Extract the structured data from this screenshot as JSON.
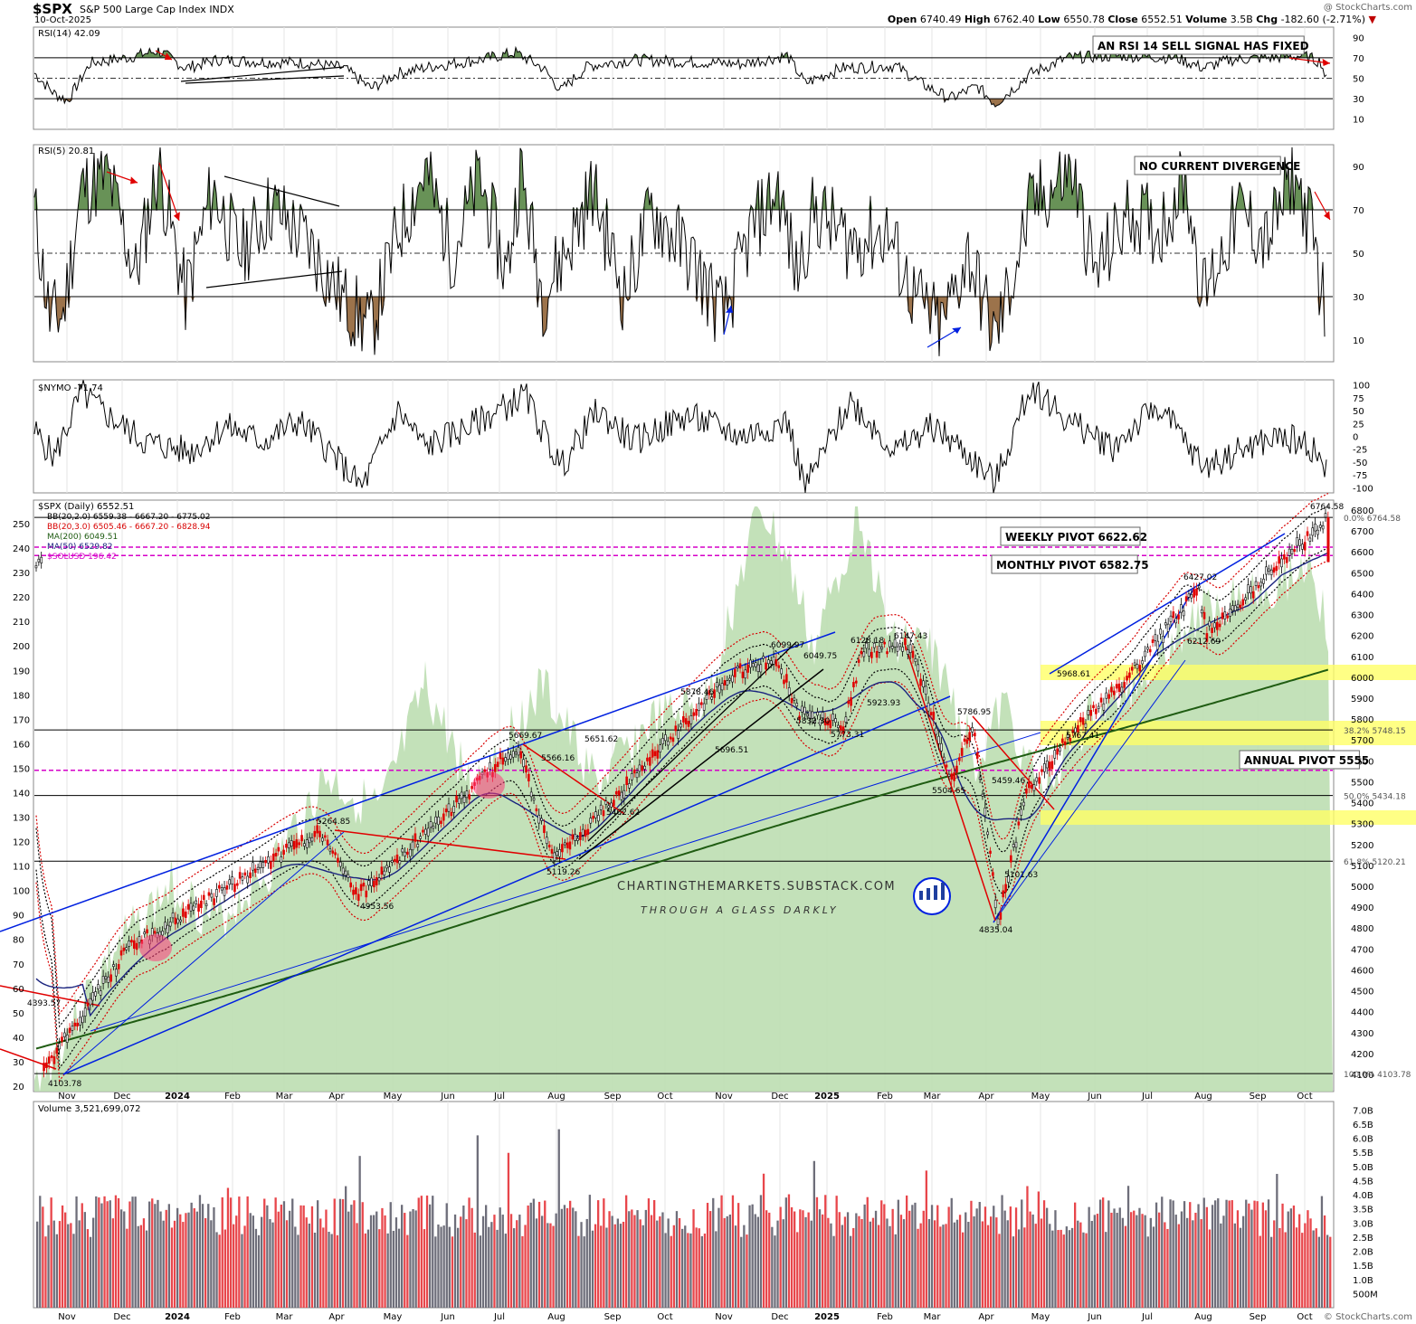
{
  "header": {
    "symbol": "$SPX",
    "name": "S&P 500 Large Cap Index",
    "exchange": "INDX",
    "date": "10-Oct-2025",
    "open_label": "Open",
    "open": "6740.49",
    "high_label": "High",
    "high": "6762.40",
    "low_label": "Low",
    "low": "6550.78",
    "close_label": "Close",
    "close": "6552.51",
    "volume_label": "Volume",
    "volume": "3.5B",
    "chg_label": "Chg",
    "chg": "-182.60 (-2.71%)",
    "watermark": "@ StockCharts.com",
    "watermark_bottom": "© StockCharts.com"
  },
  "colors": {
    "up": "#000000",
    "down": "#e00000",
    "rsi_fill_high": "#4e7f3a",
    "rsi_fill_low": "#8b5a2b",
    "sol_area": "#b9dcad",
    "ma200": "#1f5c12",
    "ma50": "#1a237e",
    "pivot": "#d600c8",
    "bb20_2": "#000000",
    "bb20_3": "#d80000",
    "trendline_blue": "#0020e0",
    "trendline_red": "#e00000",
    "fib_band": "#ffff66",
    "vol_up": "#6e6e7a",
    "vol_down": "#e8464b"
  },
  "panels": {
    "rsi14": {
      "legend": "RSI(14) 42.09",
      "ticks": [
        "90",
        "70",
        "50",
        "30",
        "10"
      ],
      "annotation": "AN RSI 14 SELL SIGNAL HAS FIXED"
    },
    "rsi5": {
      "legend": "RSI(5) 20.81",
      "ticks": [
        "90",
        "70",
        "50",
        "30",
        "10"
      ],
      "annotation": "NO CURRENT DIVERGENCE"
    },
    "nymo": {
      "legend": "$NYMO -71.74",
      "ticks": [
        "100",
        "75",
        "50",
        "25",
        "0",
        "-25",
        "-50",
        "-75",
        "-100"
      ]
    },
    "price": {
      "legend": "$SPX (Daily) 6552.51",
      "overlays": [
        "BB(20,2.0) 6559.38 - 6667.20 - 6775.02",
        "BB(20,3.0) 6505.46 - 6667.20 - 6828.94",
        "MA(200) 6049.51",
        "MA(50) 6529.82",
        "$SOLUSD 196.42"
      ],
      "right_ticks": [
        "6800",
        "6700",
        "6600",
        "6500",
        "6400",
        "6300",
        "6200",
        "6100",
        "6000",
        "5900",
        "5800",
        "5700",
        "5600",
        "5500",
        "5400",
        "5300",
        "5200",
        "5100",
        "5000",
        "4900",
        "4800",
        "4700",
        "4600",
        "4500",
        "4400",
        "4300",
        "4200",
        "4100"
      ],
      "left_ticks": [
        "250",
        "240",
        "230",
        "220",
        "210",
        "200",
        "190",
        "180",
        "170",
        "160",
        "150",
        "140",
        "130",
        "120",
        "110",
        "100",
        "90",
        "80",
        "70",
        "60",
        "50",
        "40",
        "30",
        "20"
      ],
      "annotations": {
        "weekly_pivot": "WEEKLY PIVOT 6622.62",
        "monthly_pivot": "MONTHLY PIVOT 6582.75",
        "annual_pivot": "ANNUAL PIVOT 5555"
      },
      "fib_labels": [
        "0.0% 6764.58",
        "38.2% 5748.15",
        "50.0% 5434.18",
        "61.8% 5120.21",
        "100.0% 4103.78"
      ],
      "point_labels": [
        "6764.58",
        "6427.02",
        "6212.69",
        "6147.43",
        "6128.18",
        "6099.97",
        "6049.75",
        "5968.61",
        "5923.93",
        "5878.46",
        "5832.30",
        "5786.95",
        "5773.31",
        "5767.41",
        "5696.51",
        "5669.67",
        "5651.62",
        "5566.16",
        "5504.65",
        "5459.46",
        "5402.62",
        "5264.85",
        "5119.26",
        "5101.63",
        "4953.56",
        "4835.04",
        "4393.57",
        "4103.78"
      ],
      "brand": "CHARTINGTHEMARKETS.SUBSTACK.COM",
      "brand_sub": "THROUGH A GLASS DARKLY"
    },
    "volume": {
      "legend": "Volume 3,521,699,072",
      "ticks": [
        "7.0B",
        "6.5B",
        "6.0B",
        "5.5B",
        "5.0B",
        "4.5B",
        "4.0B",
        "3.5B",
        "3.0B",
        "2.5B",
        "2.0B",
        "1.5B",
        "1.0B",
        "500M"
      ]
    }
  },
  "x_axis_labels": [
    "Nov",
    "Dec",
    "2024",
    "Feb",
    "Mar",
    "Apr",
    "May",
    "Jun",
    "Jul",
    "Aug",
    "Sep",
    "Oct",
    "Nov",
    "Dec",
    "2025",
    "Feb",
    "Mar",
    "Apr",
    "May",
    "Jun",
    "Jul",
    "Aug",
    "Sep",
    "Oct"
  ],
  "chart_data": {
    "type": "line",
    "title": "$SPX (Daily)",
    "period": "Oct 2023 - Oct 2025",
    "x": [
      "2023-10-27",
      "2023-12-14",
      "2024-03-28",
      "2024-04-19",
      "2024-07-16",
      "2024-08-05",
      "2024-09-06",
      "2024-11-11",
      "2024-12-06",
      "2024-12-18",
      "2025-01-13",
      "2025-01-23",
      "2025-02-19",
      "2025-03-13",
      "2025-03-25",
      "2025-04-08",
      "2025-04-24",
      "2025-05-23",
      "2025-06-16",
      "2025-07-28",
      "2025-08-01",
      "2025-10-08",
      "2025-10-10"
    ],
    "series": [
      {
        "name": "$SPX",
        "values": [
          4103.78,
          4700,
          5264.85,
          4953.56,
          5669.67,
          5119.26,
          5402.62,
          6017,
          6099.97,
          5832.3,
          5773.31,
          6128.18,
          6147.43,
          5504.65,
          5786.95,
          4835.04,
          5459.46,
          5767.41,
          5968.61,
          6427.02,
          6212.69,
          6764.58,
          6552.51
        ]
      }
    ],
    "ylim": [
      4100,
      6800
    ]
  }
}
